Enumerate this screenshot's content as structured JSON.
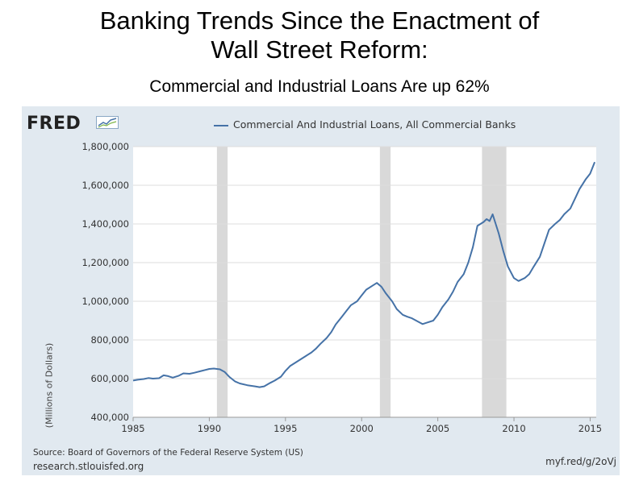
{
  "slide": {
    "title_line1": "Banking Trends Since the Enactment of",
    "title_line2": "Wall Street Reform:",
    "subtitle": "Commercial and Industrial Loans Are up 62%"
  },
  "fred": {
    "logo_text": "FRED",
    "source": "Source: Board of Governors of the Federal Reserve System (US)",
    "site": "research.stlouisfed.org",
    "shortlink": "myf.red/g/2oVj"
  },
  "chart_data": {
    "type": "line",
    "ylabel": "(Millions of Dollars)",
    "xlim": [
      1985,
      2015.4
    ],
    "ylim": [
      400000,
      1800000
    ],
    "xticks": [
      1985,
      1990,
      1995,
      2000,
      2005,
      2010,
      2015
    ],
    "yticks": [
      400000,
      600000,
      800000,
      1000000,
      1200000,
      1400000,
      1600000,
      1800000
    ],
    "ytick_labels": [
      "400,000",
      "600,000",
      "800,000",
      "1,000,000",
      "1,200,000",
      "1,400,000",
      "1,600,000",
      "1,800,000"
    ],
    "grid": true,
    "legend_position": "top",
    "line_color": "#4572a7",
    "recession_color": "#d9d9d9",
    "recessions": [
      [
        1990.5,
        1991.2
      ],
      [
        2001.2,
        2001.9
      ],
      [
        2007.9,
        2009.5
      ]
    ],
    "series": [
      {
        "name": "Commercial And Industrial Loans, All Commercial Banks",
        "x": [
          1985.0,
          1985.3,
          1985.7,
          1986.0,
          1986.3,
          1986.7,
          1987.0,
          1987.3,
          1987.6,
          1988.0,
          1988.3,
          1988.7,
          1989.0,
          1989.5,
          1990.0,
          1990.3,
          1990.7,
          1991.0,
          1991.3,
          1991.7,
          1992.0,
          1992.5,
          1993.0,
          1993.3,
          1993.6,
          1994.0,
          1994.3,
          1994.7,
          1995.0,
          1995.3,
          1995.7,
          1996.0,
          1996.3,
          1996.7,
          1997.0,
          1997.3,
          1997.7,
          1998.0,
          1998.3,
          1998.7,
          1999.0,
          1999.3,
          1999.7,
          2000.0,
          2000.3,
          2000.7,
          2001.0,
          2001.3,
          2001.6,
          2002.0,
          2002.3,
          2002.7,
          2003.0,
          2003.3,
          2003.7,
          2004.0,
          2004.3,
          2004.7,
          2005.0,
          2005.3,
          2005.7,
          2006.0,
          2006.3,
          2006.7,
          2007.0,
          2007.3,
          2007.6,
          2008.0,
          2008.2,
          2008.4,
          2008.6,
          2008.8,
          2009.0,
          2009.3,
          2009.6,
          2010.0,
          2010.3,
          2010.7,
          2011.0,
          2011.3,
          2011.7,
          2012.0,
          2012.3,
          2012.7,
          2013.0,
          2013.3,
          2013.7,
          2014.0,
          2014.3,
          2014.7,
          2015.0,
          2015.3
        ],
        "values": [
          590000,
          594000,
          598000,
          603000,
          600000,
          602000,
          617000,
          613000,
          605000,
          615000,
          627000,
          625000,
          630000,
          640000,
          650000,
          652000,
          648000,
          635000,
          610000,
          585000,
          575000,
          566000,
          560000,
          556000,
          560000,
          578000,
          590000,
          610000,
          640000,
          665000,
          685000,
          700000,
          715000,
          735000,
          755000,
          780000,
          810000,
          840000,
          880000,
          920000,
          950000,
          980000,
          1000000,
          1030000,
          1060000,
          1080000,
          1095000,
          1075000,
          1040000,
          1000000,
          960000,
          930000,
          920000,
          912000,
          895000,
          882000,
          890000,
          900000,
          930000,
          970000,
          1010000,
          1050000,
          1100000,
          1140000,
          1200000,
          1280000,
          1390000,
          1410000,
          1425000,
          1415000,
          1450000,
          1400000,
          1350000,
          1260000,
          1180000,
          1120000,
          1105000,
          1120000,
          1140000,
          1180000,
          1230000,
          1300000,
          1370000,
          1400000,
          1420000,
          1450000,
          1480000,
          1530000,
          1580000,
          1630000,
          1660000,
          1720000
        ]
      }
    ]
  }
}
